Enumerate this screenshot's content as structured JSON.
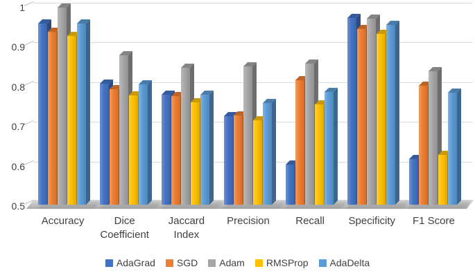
{
  "figure": {
    "background_color": "#FFFFFF",
    "text_color": "#404040",
    "gridline_color": "#D9D9D9"
  },
  "chart_data": {
    "type": "bar",
    "style": "3d-clustered-column",
    "title": "",
    "xlabel": "",
    "ylabel": "",
    "grid": true,
    "legend_position": "bottom",
    "categories": [
      "Accuracy",
      "Dice Coefficient",
      "Jaccard Index",
      "Precision",
      "Recall",
      "Specificity",
      "F1 Score"
    ],
    "category_label_lines": [
      [
        "Accuracy"
      ],
      [
        "Dice",
        "Coefficient"
      ],
      [
        "Jaccard",
        "Index"
      ],
      [
        "Precision"
      ],
      [
        "Recall"
      ],
      [
        "Specificity"
      ],
      [
        "F1 Score"
      ]
    ],
    "series": [
      {
        "name": "AdaGrad",
        "color": "#4472C4",
        "values": [
          0.955,
          0.805,
          0.777,
          0.722,
          0.601,
          0.97,
          0.615
        ]
      },
      {
        "name": "SGD",
        "color": "#ED7D31",
        "values": [
          0.935,
          0.79,
          0.773,
          0.725,
          0.813,
          0.941,
          0.8
        ]
      },
      {
        "name": "Adam",
        "color": "#A5A5A5",
        "values": [
          0.995,
          0.875,
          0.845,
          0.848,
          0.855,
          0.968,
          0.835
        ]
      },
      {
        "name": "RMSProp",
        "color": "#FFC000",
        "values": [
          0.925,
          0.775,
          0.757,
          0.712,
          0.752,
          0.93,
          0.626
        ]
      },
      {
        "name": "AdaDelta",
        "color": "#5B9BD5",
        "values": [
          0.955,
          0.803,
          0.776,
          0.755,
          0.783,
          0.952,
          0.782
        ]
      }
    ],
    "yaxis": {
      "min": 0.5,
      "max": 1.0,
      "step": 0.1,
      "tick_labels": [
        "1",
        "0.9",
        "0.8",
        "0.7",
        "0.6",
        "0.5"
      ],
      "tick_values": [
        1.0,
        0.9,
        0.8,
        0.7,
        0.6,
        0.5
      ]
    }
  }
}
